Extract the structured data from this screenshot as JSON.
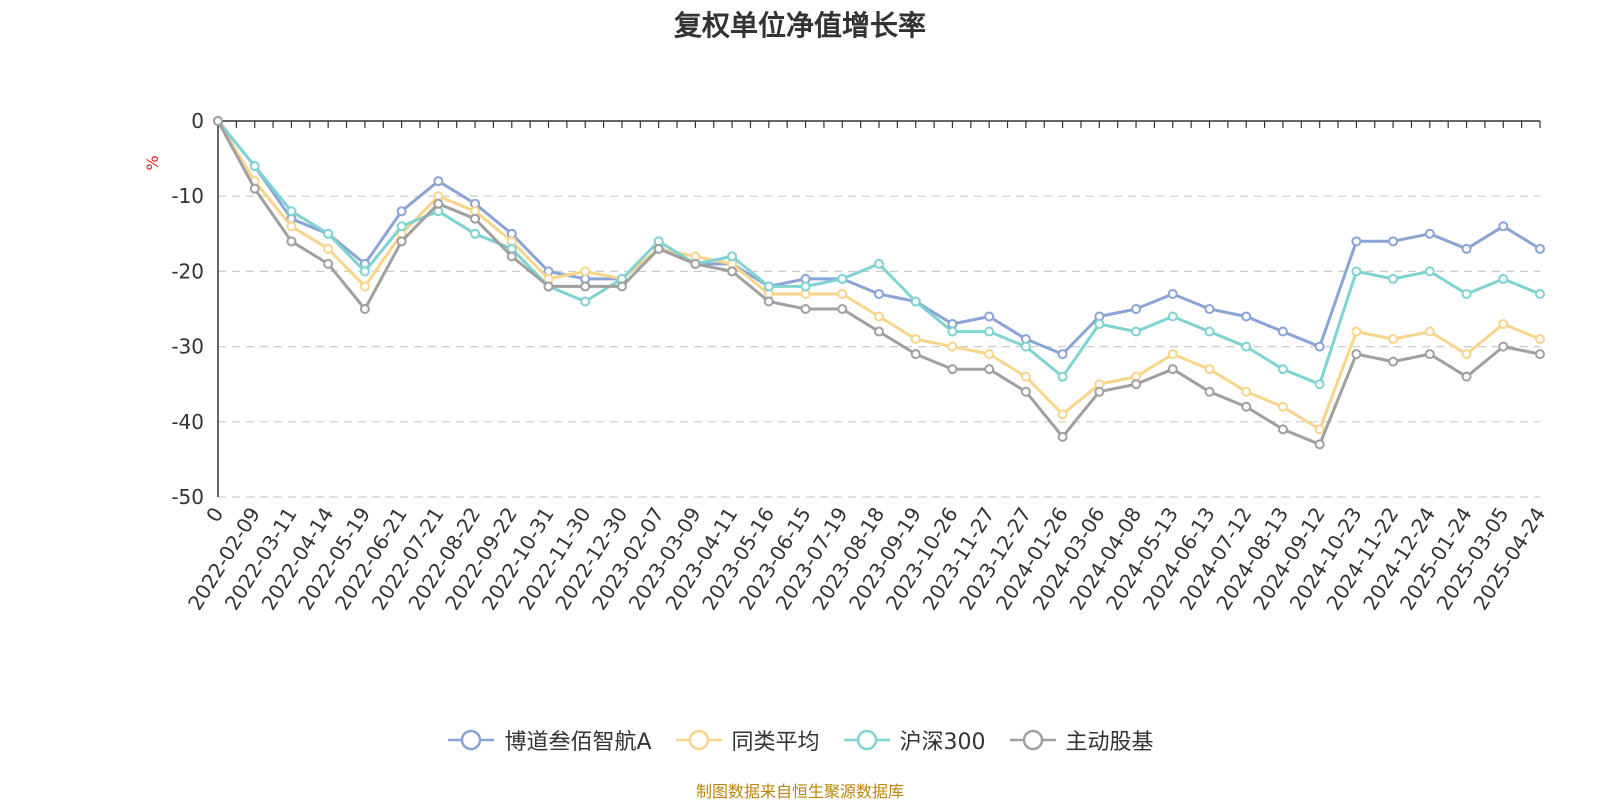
{
  "chart_data": {
    "type": "line",
    "title": "复权单位净值增长率",
    "ylabel": "%",
    "xlabel": "",
    "ylim": [
      -50,
      0
    ],
    "yticks": [
      "0",
      "-10",
      "-20",
      "-30",
      "-40",
      "-50"
    ],
    "grid": true,
    "legend_position": "bottom",
    "x_tick_labels": [
      "0",
      "2022-02-09",
      "2022-03-11",
      "2022-04-14",
      "2022-05-19",
      "2022-06-21",
      "2022-07-21",
      "2022-08-22",
      "2022-09-22",
      "2022-10-31",
      "2022-11-30",
      "2022-12-30",
      "2023-02-07",
      "2023-03-09",
      "2023-04-11",
      "2023-05-16",
      "2023-06-15",
      "2023-07-19",
      "2023-08-18",
      "2023-09-19",
      "2023-10-26",
      "2023-11-27",
      "2023-12-27",
      "2024-01-26",
      "2024-03-06",
      "2024-04-08",
      "2024-05-13",
      "2024-06-13",
      "2024-07-12",
      "2024-08-13",
      "2024-09-12",
      "2024-10-23",
      "2024-11-22",
      "2024-12-24",
      "2025-01-24",
      "2025-03-05",
      "2025-04-24"
    ],
    "x": [
      "0",
      "2022-02-09",
      "2022-03-11",
      "2022-04-14",
      "2022-05-19",
      "2022-06-21",
      "2022-07-21",
      "2022-08-22",
      "2022-09-22",
      "2022-10-31",
      "2022-11-30",
      "2022-12-30",
      "2023-02-07",
      "2023-03-09",
      "2023-04-11",
      "2023-05-16",
      "2023-06-15",
      "2023-07-19",
      "2023-08-18",
      "2023-09-19",
      "2023-10-26",
      "2023-11-27",
      "2023-12-27",
      "2024-01-26",
      "2024-03-06",
      "2024-04-08",
      "2024-05-13",
      "2024-06-13",
      "2024-07-12",
      "2024-08-13",
      "2024-09-12",
      "2024-10-23",
      "2024-11-22",
      "2024-12-24",
      "2025-01-24",
      "2025-03-05",
      "2025-04-24"
    ],
    "series": [
      {
        "name": "博道叁佰智航A",
        "color": "#8aa4d6",
        "values": [
          0,
          -6,
          -13,
          -15,
          -19,
          -12,
          -8,
          -11,
          -15,
          -20,
          -21,
          -21,
          -17,
          -19,
          -19,
          -22,
          -21,
          -21,
          -23,
          -24,
          -27,
          -26,
          -29,
          -31,
          -26,
          -25,
          -23,
          -25,
          -26,
          -28,
          -30,
          -16,
          -16,
          -15,
          -17,
          -14,
          -17
        ]
      },
      {
        "name": "同类平均",
        "color": "#f9d58c",
        "values": [
          0,
          -8,
          -14,
          -17,
          -22,
          -15,
          -10,
          -12,
          -16,
          -21,
          -20,
          -21,
          -17,
          -18,
          -19,
          -23,
          -23,
          -23,
          -26,
          -29,
          -30,
          -31,
          -34,
          -39,
          -35,
          -34,
          -31,
          -33,
          -36,
          -38,
          -41,
          -28,
          -29,
          -28,
          -31,
          -27,
          -29
        ]
      },
      {
        "name": "沪深300",
        "color": "#7fd3d0",
        "values": [
          0,
          -6,
          -12,
          -15,
          -20,
          -14,
          -12,
          -15,
          -17,
          -22,
          -24,
          -21,
          -16,
          -19,
          -18,
          -22,
          -22,
          -21,
          -19,
          -24,
          -28,
          -28,
          -30,
          -34,
          -27,
          -28,
          -26,
          -28,
          -30,
          -33,
          -35,
          -20,
          -21,
          -20,
          -23,
          -21,
          -23
        ]
      },
      {
        "name": "主动股基",
        "color": "#a0a0a0",
        "values": [
          0,
          -9,
          -16,
          -19,
          -25,
          -16,
          -11,
          -13,
          -18,
          -22,
          -22,
          -22,
          -17,
          -19,
          -20,
          -24,
          -25,
          -25,
          -28,
          -31,
          -33,
          -33,
          -36,
          -42,
          -36,
          -35,
          -33,
          -36,
          -38,
          -41,
          -43,
          -31,
          -32,
          -31,
          -34,
          -30,
          -31
        ]
      }
    ]
  },
  "source": "制图数据来自恒生聚源数据库"
}
